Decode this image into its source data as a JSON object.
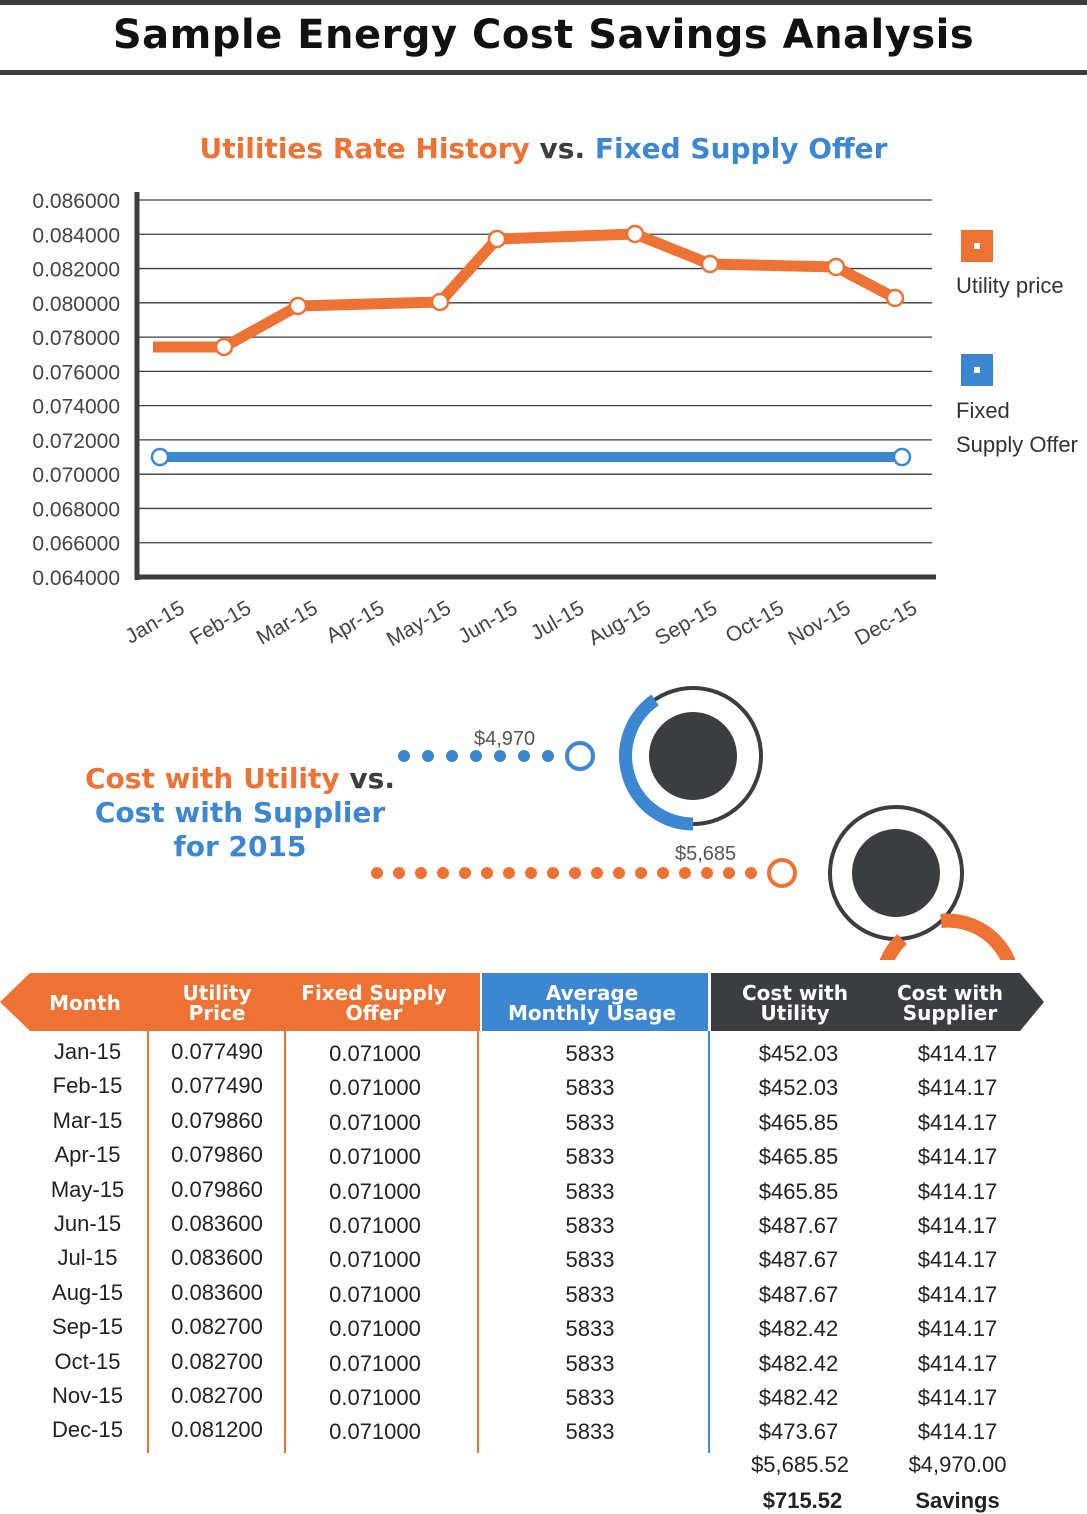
{
  "title": "Sample Energy Cost Savings Analysis",
  "chart_title": {
    "part1": "Utilities Rate History",
    "vs": " vs. ",
    "part2": "Fixed Supply Offer"
  },
  "chart_data": {
    "type": "line",
    "categories": [
      "Jan-15",
      "Feb-15",
      "Mar-15",
      "Apr-15",
      "May-15",
      "Jun-15",
      "Jul-15",
      "Aug-15",
      "Sep-15",
      "Oct-15",
      "Nov-15",
      "Dec-15"
    ],
    "series": [
      {
        "name": "Utility price",
        "color": "#ee7233",
        "values": [
          0.07749,
          0.07749,
          0.07986,
          0.07986,
          0.07986,
          0.0836,
          0.0836,
          0.0836,
          0.0827,
          0.0827,
          0.0827,
          0.0812
        ]
      },
      {
        "name": "Fixed Supply Offer",
        "color": "#3d87d2",
        "values": [
          0.071,
          0.071,
          0.071,
          0.071,
          0.071,
          0.071,
          0.071,
          0.071,
          0.071,
          0.071,
          0.071,
          0.071
        ]
      }
    ],
    "ylim": [
      0.064,
      0.086
    ],
    "yticks": [
      "0.086000",
      "0.084000",
      "0.082000",
      "0.080000",
      "0.078000",
      "0.076000",
      "0.074000",
      "0.072000",
      "0.070000",
      "0.068000",
      "0.066000",
      "0.064000"
    ],
    "grid": true,
    "legend_position": "right"
  },
  "legend": {
    "utility": "Utility price",
    "fixed_line1": "Fixed",
    "fixed_line2": "Supply Offer"
  },
  "cost_section": {
    "line1_a": "Cost with Utility",
    "line1_b": " vs.",
    "line2": "Cost with Supplier",
    "line3": "for 2015",
    "supplier_amount": "$4,970",
    "utility_amount": "$5,685"
  },
  "table": {
    "headers": {
      "month": "Month",
      "utility_price_1": "Utility",
      "utility_price_2": "Price",
      "fixed_1": "Fixed Supply",
      "fixed_2": "Offer",
      "usage_1": "Average",
      "usage_2": "Monthly Usage",
      "cost_util_1": "Cost with",
      "cost_util_2": "Utility",
      "cost_sup_1": "Cost with",
      "cost_sup_2": "Supplier"
    },
    "rows": [
      [
        "Jan-15",
        "0.077490",
        "0.071000",
        "5833",
        "$452.03",
        "$414.17"
      ],
      [
        "Feb-15",
        "0.077490",
        "0.071000",
        "5833",
        "$452.03",
        "$414.17"
      ],
      [
        "Mar-15",
        "0.079860",
        "0.071000",
        "5833",
        "$465.85",
        "$414.17"
      ],
      [
        "Apr-15",
        "0.079860",
        "0.071000",
        "5833",
        "$465.85",
        "$414.17"
      ],
      [
        "May-15",
        "0.079860",
        "0.071000",
        "5833",
        "$465.85",
        "$414.17"
      ],
      [
        "Jun-15",
        "0.083600",
        "0.071000",
        "5833",
        "$487.67",
        "$414.17"
      ],
      [
        "Jul-15",
        "0.083600",
        "0.071000",
        "5833",
        "$487.67",
        "$414.17"
      ],
      [
        "Aug-15",
        "0.083600",
        "0.071000",
        "5833",
        "$487.67",
        "$414.17"
      ],
      [
        "Sep-15",
        "0.082700",
        "0.071000",
        "5833",
        "$482.42",
        "$414.17"
      ],
      [
        "Oct-15",
        "0.082700",
        "0.071000",
        "5833",
        "$482.42",
        "$414.17"
      ],
      [
        "Nov-15",
        "0.082700",
        "0.071000",
        "5833",
        "$482.42",
        "$414.17"
      ],
      [
        "Dec-15",
        "0.081200",
        "0.071000",
        "5833",
        "$473.67",
        "$414.17"
      ]
    ],
    "total_utility": "$5,685.52",
    "total_supplier": "$4,970.00",
    "savings_value": "$715.52",
    "savings_label": "Savings"
  }
}
